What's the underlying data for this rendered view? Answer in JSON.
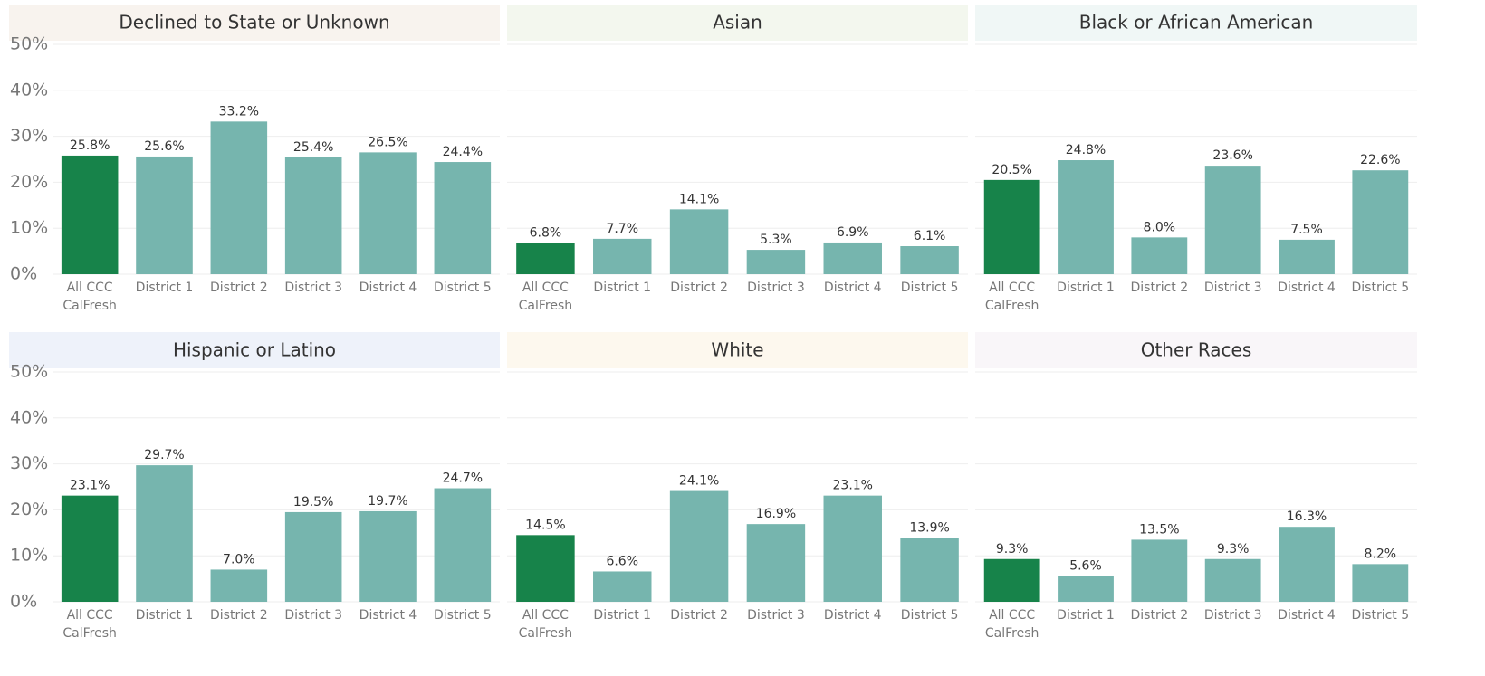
{
  "chart_data": [
    {
      "type": "bar",
      "title": "Declined to State or Unknown",
      "header_color": "#f8f3ee",
      "categories": [
        "All CCC CalFresh",
        "District 1",
        "District 2",
        "District 3",
        "District 4",
        "District 5"
      ],
      "values": [
        25.8,
        25.6,
        33.2,
        25.4,
        26.5,
        24.4
      ],
      "value_labels": [
        "25.8%",
        "25.6%",
        "33.2%",
        "25.4%",
        "26.5%",
        "24.4%"
      ],
      "colors": [
        "#17834a",
        "#76b5ae",
        "#76b5ae",
        "#76b5ae",
        "#76b5ae",
        "#76b5ae"
      ],
      "ylim": [
        0,
        50
      ],
      "grid": true,
      "yticks": [
        {
          "value": 0,
          "label": "0%"
        },
        {
          "value": 10,
          "label": "10%"
        },
        {
          "value": 20,
          "label": "20%"
        },
        {
          "value": 30,
          "label": "30%"
        },
        {
          "value": 40,
          "label": "40%"
        },
        {
          "value": 50,
          "label": "50%"
        }
      ]
    },
    {
      "type": "bar",
      "title": "Asian",
      "header_color": "#f3f7ee",
      "categories": [
        "All CCC CalFresh",
        "District 1",
        "District 2",
        "District 3",
        "District 4",
        "District 5"
      ],
      "values": [
        6.8,
        7.7,
        14.1,
        5.3,
        6.9,
        6.1
      ],
      "value_labels": [
        "6.8%",
        "7.7%",
        "14.1%",
        "5.3%",
        "6.9%",
        "6.1%"
      ],
      "colors": [
        "#17834a",
        "#76b5ae",
        "#76b5ae",
        "#76b5ae",
        "#76b5ae",
        "#76b5ae"
      ],
      "ylim": [
        0,
        50
      ],
      "grid": true,
      "yticks": [
        0,
        10,
        20,
        30,
        40,
        50
      ]
    },
    {
      "type": "bar",
      "title": "Black or African American",
      "header_color": "#f0f7f6",
      "categories": [
        "All CCC CalFresh",
        "District 1",
        "District 2",
        "District 3",
        "District 4",
        "District 5"
      ],
      "values": [
        20.5,
        24.8,
        8.0,
        23.6,
        7.5,
        22.6
      ],
      "value_labels": [
        "20.5%",
        "24.8%",
        "8.0%",
        "23.6%",
        "7.5%",
        "22.6%"
      ],
      "colors": [
        "#17834a",
        "#76b5ae",
        "#76b5ae",
        "#76b5ae",
        "#76b5ae",
        "#76b5ae"
      ],
      "ylim": [
        0,
        50
      ],
      "grid": true,
      "yticks": [
        0,
        10,
        20,
        30,
        40,
        50
      ]
    },
    {
      "type": "bar",
      "title": "Hispanic or Latino",
      "header_color": "#eef2fa",
      "categories": [
        "All CCC CalFresh",
        "District 1",
        "District 2",
        "District 3",
        "District 4",
        "District 5"
      ],
      "values": [
        23.1,
        29.7,
        7.0,
        19.5,
        19.7,
        24.7
      ],
      "value_labels": [
        "23.1%",
        "29.7%",
        "7.0%",
        "19.5%",
        "19.7%",
        "24.7%"
      ],
      "colors": [
        "#17834a",
        "#76b5ae",
        "#76b5ae",
        "#76b5ae",
        "#76b5ae",
        "#76b5ae"
      ],
      "ylim": [
        0,
        50
      ],
      "grid": true,
      "yticks": [
        {
          "value": 0,
          "label": "0%"
        },
        {
          "value": 10,
          "label": "10%"
        },
        {
          "value": 20,
          "label": "20%"
        },
        {
          "value": 30,
          "label": "30%"
        },
        {
          "value": 40,
          "label": "40%"
        },
        {
          "value": 50,
          "label": "50%"
        }
      ]
    },
    {
      "type": "bar",
      "title": "White",
      "header_color": "#fdf8ee",
      "categories": [
        "All CCC CalFresh",
        "District 1",
        "District 2",
        "District 3",
        "District 4",
        "District 5"
      ],
      "values": [
        14.5,
        6.6,
        24.1,
        16.9,
        23.1,
        13.9
      ],
      "value_labels": [
        "14.5%",
        "6.6%",
        "24.1%",
        "16.9%",
        "23.1%",
        "13.9%"
      ],
      "colors": [
        "#17834a",
        "#76b5ae",
        "#76b5ae",
        "#76b5ae",
        "#76b5ae",
        "#76b5ae"
      ],
      "ylim": [
        0,
        50
      ],
      "grid": true,
      "yticks": [
        0,
        10,
        20,
        30,
        40,
        50
      ]
    },
    {
      "type": "bar",
      "title": "Other Races",
      "header_color": "#f9f6f9",
      "categories": [
        "All CCC CalFresh",
        "District 1",
        "District 2",
        "District 3",
        "District 4",
        "District 5"
      ],
      "values": [
        9.3,
        5.6,
        13.5,
        9.3,
        16.3,
        8.2
      ],
      "value_labels": [
        "9.3%",
        "5.6%",
        "13.5%",
        "9.3%",
        "16.3%",
        "8.2%"
      ],
      "colors": [
        "#17834a",
        "#76b5ae",
        "#76b5ae",
        "#76b5ae",
        "#76b5ae",
        "#76b5ae"
      ],
      "ylim": [
        0,
        50
      ],
      "grid": true,
      "yticks": [
        0,
        10,
        20,
        30,
        40,
        50
      ]
    }
  ]
}
